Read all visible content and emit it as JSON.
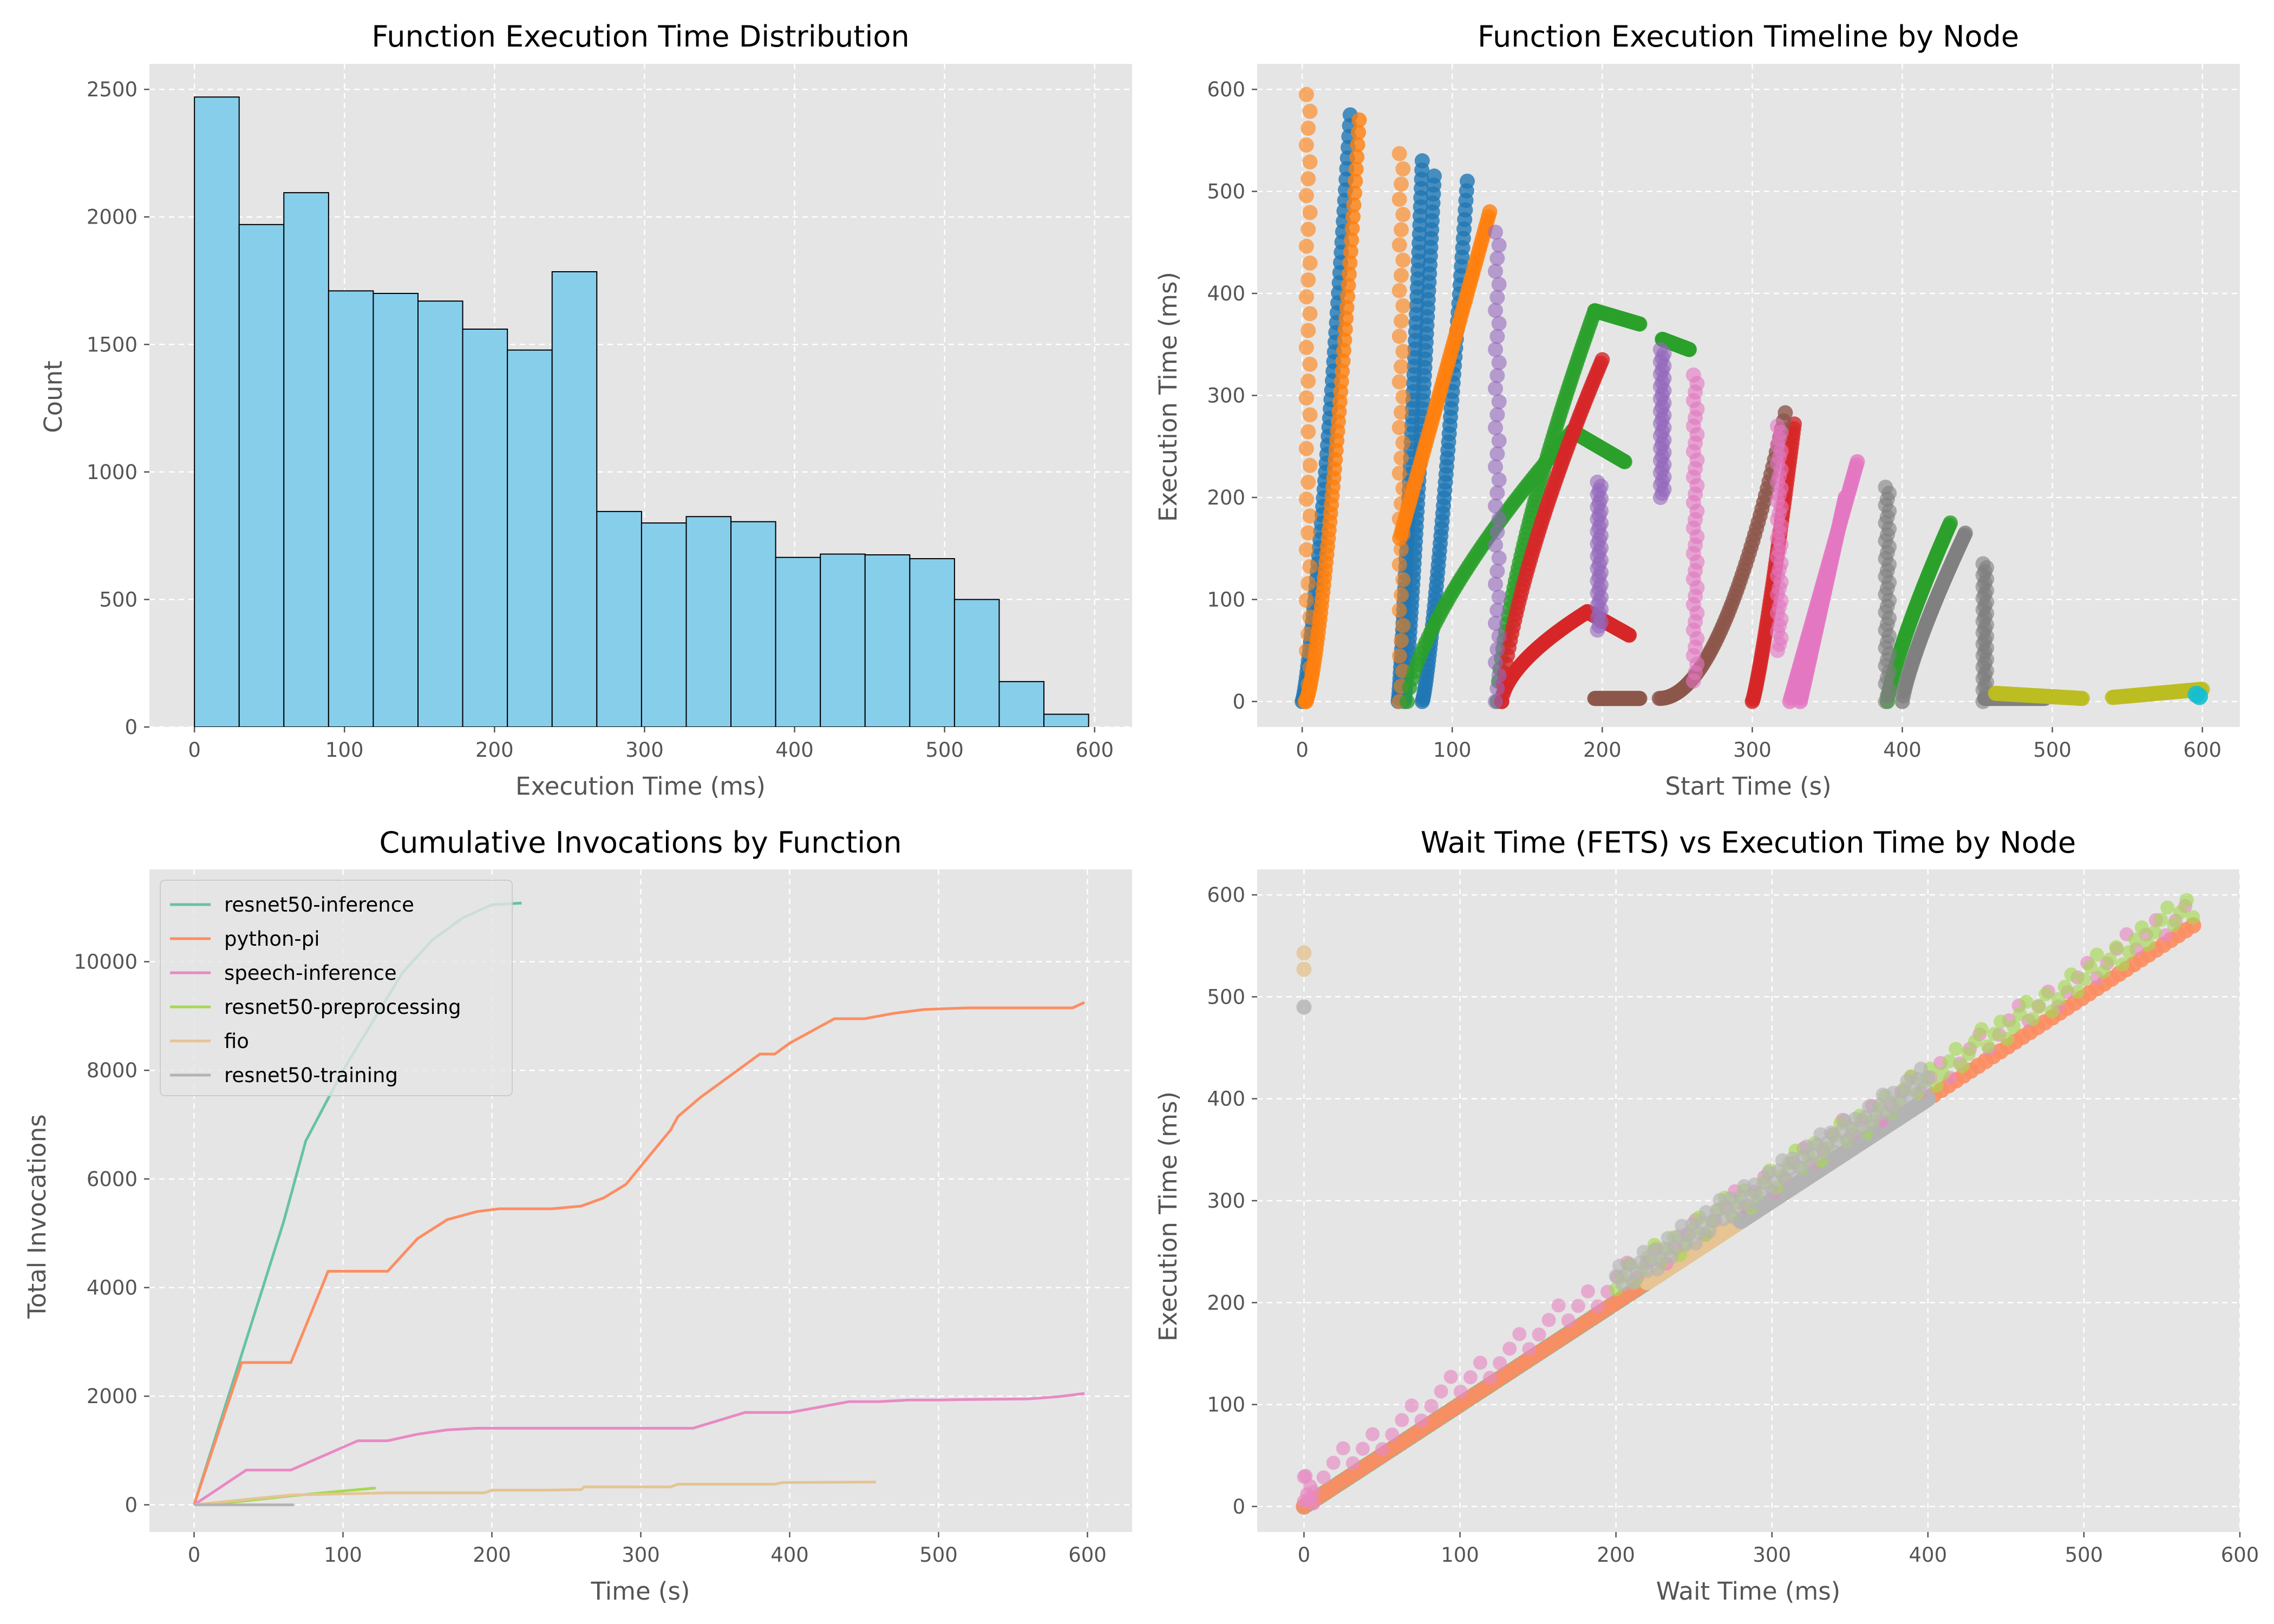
{
  "colors": {
    "background": "#ffffff",
    "axes_face": "#e5e5e5",
    "grid": "#ffffff",
    "text": "#555555",
    "histogram_fill": "#87ceeb",
    "histogram_edge": "#000000"
  },
  "chart_data": [
    {
      "type": "bar",
      "title": "Function Execution Time Distribution",
      "xlabel": "Execution Time (ms)",
      "ylabel": "Count",
      "xlim": [
        -30,
        625
      ],
      "ylim": [
        0,
        2600
      ],
      "xticks": [
        0,
        100,
        200,
        300,
        400,
        500,
        600
      ],
      "yticks": [
        0,
        500,
        1000,
        1500,
        2000,
        2500
      ],
      "grid": true,
      "bin_edges": [
        0,
        29.8,
        59.6,
        89.4,
        119.2,
        149,
        178.8,
        208.6,
        238.4,
        268.2,
        298,
        327.8,
        357.6,
        387.4,
        417.2,
        447,
        476.8,
        506.6,
        536.4,
        566.2,
        596
      ],
      "values": [
        2470,
        1970,
        2095,
        1710,
        1700,
        1670,
        1560,
        1478,
        1785,
        845,
        800,
        825,
        805,
        665,
        678,
        675,
        660,
        500,
        178,
        50
      ]
    },
    {
      "type": "scatter",
      "title": "Function Execution Timeline by Node",
      "xlabel": "Start Time (s)",
      "ylabel": "Execution Time (ms)",
      "xlim": [
        -30,
        625
      ],
      "ylim": [
        -25,
        625
      ],
      "xticks": [
        0,
        100,
        200,
        300,
        400,
        500,
        600
      ],
      "yticks": [
        0,
        100,
        200,
        300,
        400,
        500,
        600
      ],
      "grid": true,
      "series": [
        {
          "color": "#1f77b4",
          "segments": [
            {
              "x": [
                0,
                32
              ],
              "y": [
                0,
                575
              ],
              "curve": 1.3
            },
            {
              "x": [
                64,
                80
              ],
              "y": [
                0,
                530
              ],
              "curve": 1.2
            },
            {
              "x": [
                68,
                88
              ],
              "y": [
                0,
                515
              ],
              "curve": 1.2
            },
            {
              "x": [
                80,
                110
              ],
              "y": [
                0,
                510
              ],
              "curve": 1.3
            }
          ]
        },
        {
          "color": "#ff7f0e",
          "segments": [
            {
              "x": [
                2,
                38
              ],
              "y": [
                0,
                570
              ],
              "curve": 1.5
            },
            {
              "x": [
                65,
                125
              ],
              "y": [
                160,
                480
              ],
              "curve": 1.0
            }
          ],
          "verticals": [
            {
              "x": 4,
              "y": [
                0,
                595
              ]
            },
            {
              "x": 66,
              "y": [
                0,
                537
              ]
            }
          ]
        },
        {
          "color": "#2ca02c",
          "segments": [
            {
              "x": [
                70,
                180
              ],
              "y": [
                0,
                265
              ],
              "curve": 0.7
            },
            {
              "x": [
                180,
                215
              ],
              "y": [
                265,
                235
              ],
              "curve": 1.0
            },
            {
              "x": [
                130,
                195
              ],
              "y": [
                0,
                383
              ],
              "curve": 0.7
            },
            {
              "x": [
                195,
                225
              ],
              "y": [
                383,
                370
              ],
              "curve": 1.0
            },
            {
              "x": [
                240,
                258
              ],
              "y": [
                355,
                345
              ],
              "curve": 1.0
            },
            {
              "x": [
                390,
                432
              ],
              "y": [
                0,
                175
              ],
              "curve": 0.8
            }
          ]
        },
        {
          "color": "#d62728",
          "segments": [
            {
              "x": [
                133,
                200
              ],
              "y": [
                0,
                335
              ],
              "curve": 0.7
            },
            {
              "x": [
                133,
                190
              ],
              "y": [
                0,
                88
              ],
              "curve": 0.6
            },
            {
              "x": [
                190,
                218
              ],
              "y": [
                88,
                65
              ],
              "curve": 1.0
            },
            {
              "x": [
                300,
                328
              ],
              "y": [
                0,
                272
              ],
              "curve": 1.2
            }
          ]
        },
        {
          "color": "#9467bd",
          "verticals": [
            {
              "x": 130,
              "y": [
                0,
                460
              ]
            },
            {
              "x": 198,
              "y": [
                70,
                215
              ]
            },
            {
              "x": 240,
              "y": [
                200,
                345
              ]
            }
          ]
        },
        {
          "color": "#8c564b",
          "segments": [
            {
              "x": [
                195,
                225
              ],
              "y": [
                3,
                3
              ],
              "curve": 1.0
            },
            {
              "x": [
                238,
                322
              ],
              "y": [
                3,
                283
              ],
              "curve": 2.0
            }
          ]
        },
        {
          "color": "#e377c2",
          "segments": [
            {
              "x": [
                325,
                370
              ],
              "y": [
                0,
                235
              ],
              "curve": 1.0
            },
            {
              "x": [
                332,
                362
              ],
              "y": [
                0,
                200
              ],
              "curve": 1.0
            }
          ],
          "verticals": [
            {
              "x": 262,
              "y": [
                20,
                320
              ]
            },
            {
              "x": 318,
              "y": [
                50,
                270
              ]
            }
          ]
        },
        {
          "color": "#7f7f7f",
          "segments": [
            {
              "x": [
                400,
                442
              ],
              "y": [
                0,
                165
              ],
              "curve": 0.8
            },
            {
              "x": [
                455,
                495
              ],
              "y": [
                3,
                3
              ],
              "curve": 1.0
            }
          ],
          "verticals": [
            {
              "x": 390,
              "y": [
                0,
                210
              ]
            },
            {
              "x": 455,
              "y": [
                0,
                135
              ]
            }
          ]
        },
        {
          "color": "#bcbd22",
          "segments": [
            {
              "x": [
                462,
                520
              ],
              "y": [
                8,
                3
              ],
              "curve": 1.0
            },
            {
              "x": [
                540,
                600
              ],
              "y": [
                4,
                12
              ],
              "curve": 1.0
            }
          ]
        },
        {
          "color": "#17becf",
          "points": [
            {
              "x": 596,
              "y": 7
            },
            {
              "x": 598,
              "y": 5
            }
          ]
        }
      ]
    },
    {
      "type": "line",
      "title": "Cumulative Invocations by Function",
      "xlabel": "Time (s)",
      "ylabel": "Total Invocations",
      "xlim": [
        -30,
        630
      ],
      "ylim": [
        -500,
        11700
      ],
      "xticks": [
        0,
        100,
        200,
        300,
        400,
        500,
        600
      ],
      "yticks": [
        0,
        2000,
        4000,
        6000,
        8000,
        10000
      ],
      "grid": true,
      "legend_placement": "upper left",
      "series": [
        {
          "name": "resnet50-inference",
          "color": "#66c2a5",
          "x": [
            0,
            30,
            60,
            75,
            100,
            120,
            140,
            160,
            180,
            200,
            220
          ],
          "y": [
            0,
            2600,
            5200,
            6700,
            8000,
            8900,
            9800,
            10400,
            10800,
            11050,
            11080
          ]
        },
        {
          "name": "python-pi",
          "color": "#fc8d62",
          "x": [
            0,
            32,
            65,
            90,
            130,
            150,
            170,
            190,
            205,
            240,
            260,
            275,
            290,
            305,
            320,
            325,
            340,
            360,
            380,
            390,
            400,
            420,
            430,
            450,
            470,
            490,
            520,
            570,
            590,
            598
          ],
          "y": [
            0,
            2620,
            2620,
            4300,
            4300,
            4900,
            5250,
            5400,
            5450,
            5450,
            5500,
            5650,
            5900,
            6400,
            6900,
            7150,
            7500,
            7900,
            8300,
            8300,
            8500,
            8800,
            8950,
            8950,
            9050,
            9120,
            9150,
            9150,
            9150,
            9250
          ]
        },
        {
          "name": "speech-inference",
          "color": "#e78ac3",
          "x": [
            0,
            35,
            65,
            110,
            130,
            150,
            170,
            190,
            220,
            335,
            370,
            400,
            440,
            460,
            480,
            500,
            520,
            560,
            580,
            598
          ],
          "y": [
            0,
            640,
            640,
            1180,
            1180,
            1300,
            1380,
            1410,
            1410,
            1410,
            1700,
            1700,
            1900,
            1900,
            1930,
            1930,
            1940,
            1950,
            1990,
            2050
          ]
        },
        {
          "name": "resnet50-preprocessing",
          "color": "#a6d854",
          "x": [
            0,
            30,
            60,
            90,
            122
          ],
          "y": [
            0,
            60,
            150,
            230,
            310
          ]
        },
        {
          "name": "fio",
          "color": "#e5c494",
          "x": [
            0,
            35,
            65,
            130,
            195,
            200,
            235,
            260,
            262,
            320,
            325,
            390,
            395,
            458
          ],
          "y": [
            0,
            100,
            180,
            220,
            220,
            270,
            270,
            280,
            330,
            330,
            380,
            380,
            410,
            420
          ]
        },
        {
          "name": "resnet50-training",
          "color": "#b3b3b3",
          "x": [
            0,
            67
          ],
          "y": [
            0,
            0
          ]
        }
      ]
    },
    {
      "type": "scatter",
      "title": "Wait Time (FETS) vs Execution Time by Node",
      "xlabel": "Wait Time (ms)",
      "ylabel": "Execution Time (ms)",
      "xlim": [
        -30,
        600
      ],
      "ylim": [
        -25,
        625
      ],
      "xticks": [
        0,
        100,
        200,
        300,
        400,
        500,
        600
      ],
      "yticks": [
        0,
        100,
        200,
        300,
        400,
        500,
        600
      ],
      "grid": true,
      "series": [
        {
          "color": "#66c2a5",
          "band": [
            0,
            228
          ]
        },
        {
          "color": "#fc8d62",
          "band": [
            0,
            570
          ]
        },
        {
          "color": "#e5c494",
          "band": [
            220,
            285
          ]
        },
        {
          "color": "#b3b3b3",
          "band": [
            280,
            400
          ]
        },
        {
          "color": "#e78ac3",
          "band": [
            0,
            565
          ],
          "scatter_above": true
        },
        {
          "color": "#a6d854",
          "band": [
            200,
            570
          ],
          "scatter_above": true
        },
        {
          "color": "#b3b3b3",
          "band": [
            200,
            400
          ],
          "scatter_above": true
        }
      ],
      "outliers": [
        {
          "x": 0,
          "y": 543,
          "color": "#e5c494"
        },
        {
          "x": 0,
          "y": 527,
          "color": "#e5c494"
        },
        {
          "x": 0,
          "y": 490,
          "color": "#b3b3b3"
        }
      ]
    }
  ]
}
